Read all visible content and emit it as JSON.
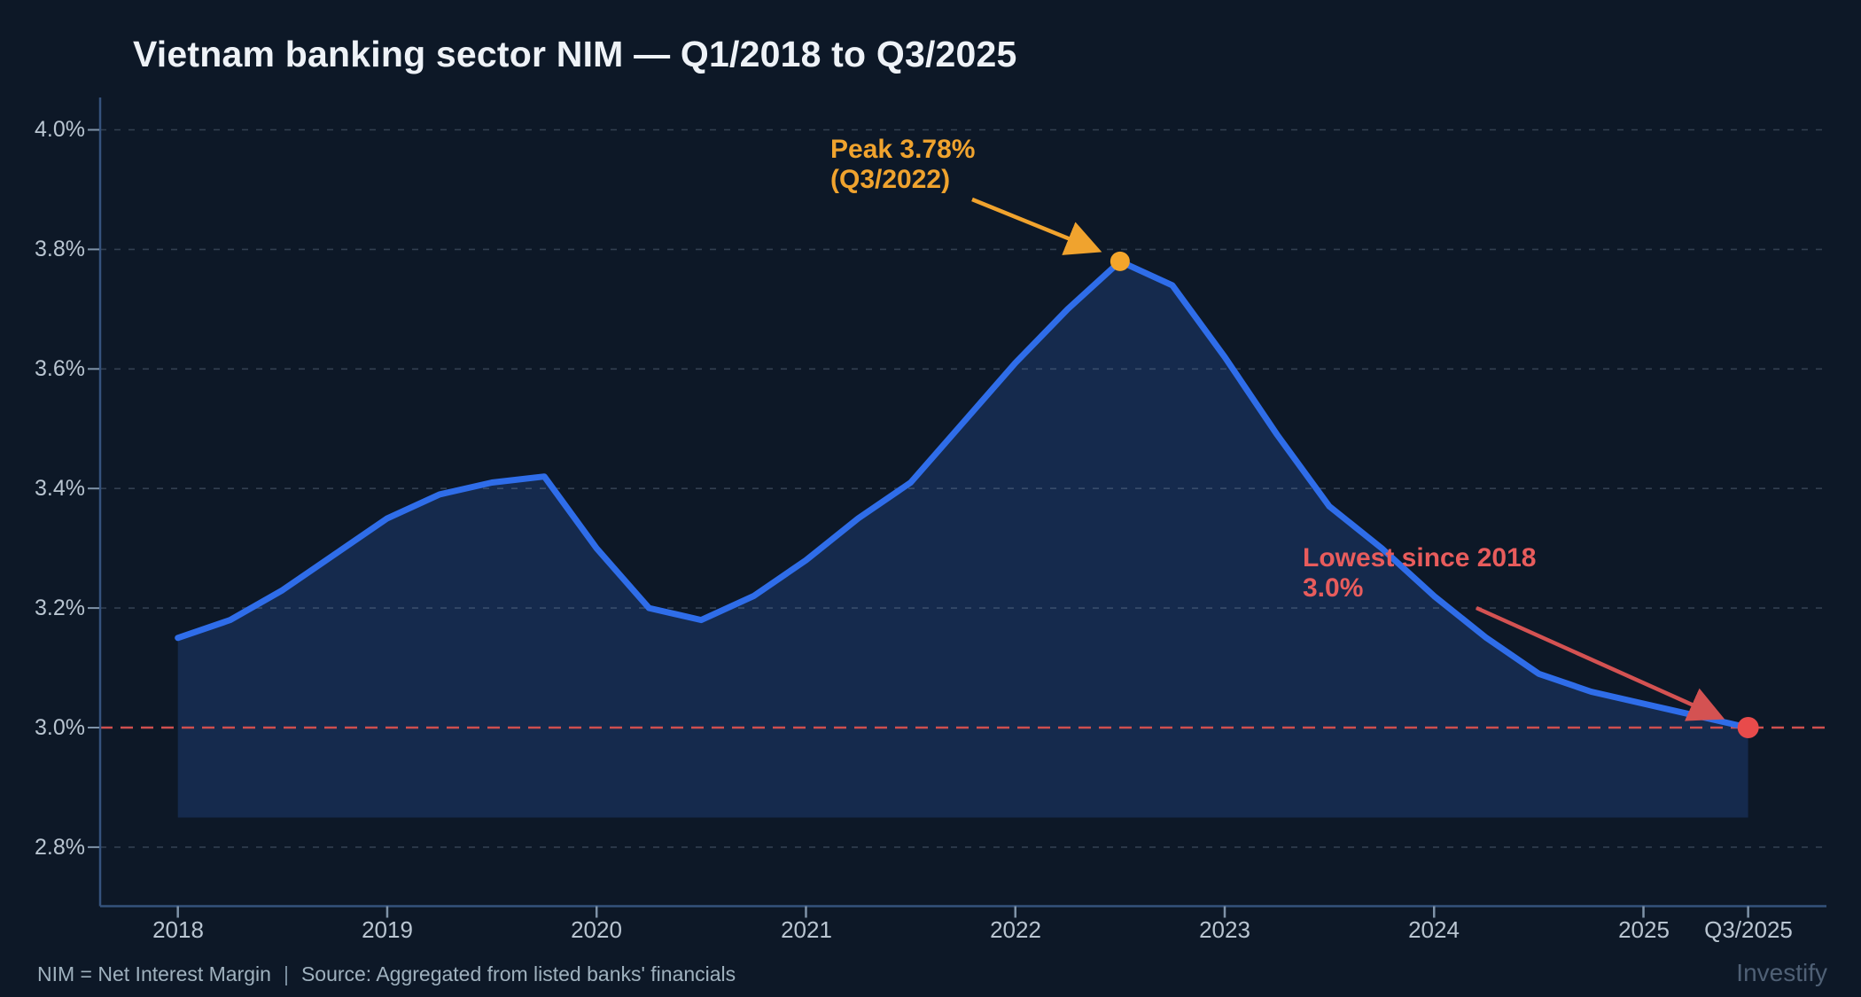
{
  "title": "Vietnam banking sector NIM — Q1/2018 to Q3/2025",
  "chart_data": {
    "type": "area",
    "series_name": "NIM (Net Interest Margin, %)",
    "x": [
      "Q1/2018",
      "Q2/2018",
      "Q3/2018",
      "Q4/2018",
      "Q1/2019",
      "Q2/2019",
      "Q3/2019",
      "Q4/2019",
      "Q1/2020",
      "Q2/2020",
      "Q3/2020",
      "Q4/2020",
      "Q1/2021",
      "Q2/2021",
      "Q3/2021",
      "Q4/2021",
      "Q1/2022",
      "Q2/2022",
      "Q3/2022",
      "Q4/2022",
      "Q1/2023",
      "Q2/2023",
      "Q3/2023",
      "Q4/2023",
      "Q1/2024",
      "Q2/2024",
      "Q3/2024",
      "Q4/2024",
      "Q1/2025",
      "Q2/2025",
      "Q3/2025"
    ],
    "values": [
      3.15,
      3.18,
      3.23,
      3.29,
      3.35,
      3.39,
      3.41,
      3.42,
      3.3,
      3.2,
      3.18,
      3.22,
      3.28,
      3.35,
      3.41,
      3.51,
      3.61,
      3.7,
      3.78,
      3.74,
      3.62,
      3.49,
      3.37,
      3.3,
      3.22,
      3.15,
      3.09,
      3.06,
      3.04,
      3.02,
      3.0
    ],
    "ylim": [
      2.7,
      4.05
    ],
    "ytick_values": [
      4.0,
      3.8,
      3.6,
      3.4,
      3.2,
      3.0,
      2.8
    ],
    "ytick_labels": [
      "4.0%",
      "3.8%",
      "3.6%",
      "3.4%",
      "3.2%",
      "3.0%",
      "2.8%"
    ],
    "xtick_labels": [
      "2018",
      "2019",
      "2020",
      "2021",
      "2022",
      "2023",
      "2024",
      "2025",
      "Q3/2025"
    ],
    "xtick_quarter_index": [
      0,
      4,
      8,
      12,
      16,
      20,
      24,
      28,
      30
    ],
    "grid": "horizontal dashed",
    "legend": "none",
    "area_baseline_value": 2.85,
    "reference_line": {
      "value": 3.0,
      "style": "dashed",
      "color": "#cf4f4f"
    },
    "annotations": [
      {
        "line1": "Peak 3.78%",
        "line2": "(Q3/2022)",
        "color": "#f0a32e",
        "point_x": "Q3/2022",
        "point_y": 3.78
      },
      {
        "line1": "Lowest since 2018",
        "line2": "3.0%",
        "color": "#e85c5c",
        "point_x": "Q3/2025",
        "point_y": 3.0
      }
    ]
  },
  "colors": {
    "background": "#0d1827",
    "line": "#2f6de9",
    "area_fill": "#152a4d",
    "grid": "#93a6b9",
    "axis": "#35527c",
    "tick_label": "#b9c5d1",
    "title": "#eef2f7",
    "peak_accent": "#f0a32e",
    "low_accent": "#e85050",
    "footer_text": "#9fb1be",
    "watermark": "#4f6075"
  },
  "footer": {
    "note": "NIM = Net Interest Margin",
    "separator": "|",
    "source": "Source: Aggregated from listed banks' financials",
    "watermark": "Investify"
  }
}
